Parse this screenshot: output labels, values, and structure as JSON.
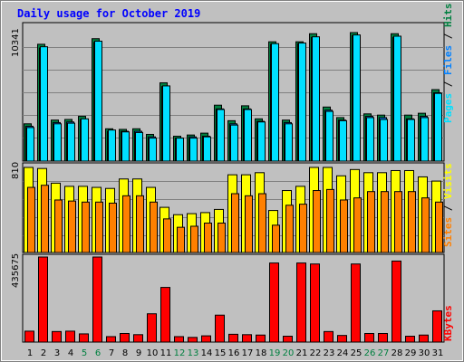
{
  "title": "Daily usage for October 2019",
  "colors": {
    "background": "#c0c0c0",
    "panel": "#c0c0c0",
    "title": "#0000ff",
    "hits": "#008040",
    "files": "#0080ff",
    "pages": "#00e0ff",
    "visits": "#ffff00",
    "sites": "#ff8000",
    "kbytes": "#ff0000",
    "weekend_label": "#008040"
  },
  "panel_labels": {
    "top": {
      "pages": "Pages",
      "files": "Files",
      "hits": "Hits",
      "sep": " / "
    },
    "middle": {
      "sites": "Sites",
      "visits": "Visits",
      "sep": " / "
    },
    "bottom": {
      "kbytes": "KBytes"
    }
  },
  "chart_data": [
    {
      "type": "bar",
      "panel": "top",
      "ylabel_max": "10341",
      "ylim": [
        0,
        10341
      ],
      "categories": [
        "1",
        "2",
        "3",
        "4",
        "5",
        "6",
        "7",
        "8",
        "9",
        "10",
        "11",
        "12",
        "13",
        "14",
        "15",
        "16",
        "17",
        "18",
        "19",
        "20",
        "21",
        "22",
        "23",
        "24",
        "25",
        "26",
        "27",
        "28",
        "29",
        "30",
        "31"
      ],
      "series": [
        {
          "name": "Hits",
          "values": [
            3000,
            9400,
            3300,
            3350,
            3600,
            9850,
            2600,
            2550,
            2600,
            2150,
            6300,
            2000,
            2100,
            2250,
            4500,
            3250,
            4450,
            3400,
            9600,
            3300,
            9600,
            10250,
            4350,
            3500,
            10341,
            3800,
            3700,
            10250,
            3700,
            3850,
            5750
          ]
        },
        {
          "name": "Files",
          "values": [
            2800,
            9100,
            3100,
            3150,
            3350,
            9550,
            2400,
            2400,
            2400,
            1950,
            6000,
            1850,
            1950,
            2000,
            4200,
            3000,
            4200,
            3200,
            9400,
            3100,
            9450,
            9950,
            4100,
            3300,
            10100,
            3600,
            3500,
            9950,
            3400,
            3600,
            5500
          ]
        },
        {
          "name": "Pages",
          "values": [
            2700,
            9200,
            3000,
            3050,
            3400,
            9650,
            2500,
            2350,
            2300,
            1850,
            6050,
            1850,
            1850,
            1950,
            4150,
            2900,
            4150,
            3150,
            9450,
            3000,
            9500,
            10000,
            4000,
            3250,
            10150,
            3500,
            3350,
            10050,
            3350,
            3500,
            5450
          ]
        }
      ]
    },
    {
      "type": "bar",
      "panel": "middle",
      "ylabel_max": "810",
      "ylim": [
        0,
        810
      ],
      "categories": [
        "1",
        "2",
        "3",
        "4",
        "5",
        "6",
        "7",
        "8",
        "9",
        "10",
        "11",
        "12",
        "13",
        "14",
        "15",
        "16",
        "17",
        "18",
        "19",
        "20",
        "21",
        "22",
        "23",
        "24",
        "25",
        "26",
        "27",
        "28",
        "29",
        "30",
        "31"
      ],
      "series": [
        {
          "name": "Visits",
          "values": [
            810,
            800,
            660,
            630,
            630,
            620,
            610,
            700,
            700,
            620,
            430,
            360,
            370,
            380,
            410,
            740,
            740,
            760,
            400,
            590,
            630,
            810,
            810,
            730,
            790,
            760,
            760,
            780,
            780,
            720,
            680
          ]
        },
        {
          "name": "Sites",
          "values": [
            620,
            640,
            500,
            490,
            480,
            480,
            470,
            540,
            540,
            480,
            320,
            240,
            250,
            280,
            280,
            560,
            540,
            560,
            260,
            450,
            460,
            590,
            600,
            500,
            520,
            580,
            580,
            580,
            580,
            520,
            480
          ]
        }
      ]
    },
    {
      "type": "bar",
      "panel": "bottom",
      "ylabel_max": "435675",
      "ylim": [
        0,
        435675
      ],
      "categories": [
        "1",
        "2",
        "3",
        "4",
        "5",
        "6",
        "7",
        "8",
        "9",
        "10",
        "11",
        "12",
        "13",
        "14",
        "15",
        "16",
        "17",
        "18",
        "19",
        "20",
        "21",
        "22",
        "23",
        "24",
        "25",
        "26",
        "27",
        "28",
        "29",
        "30",
        "31"
      ],
      "weekend_days": [
        "5",
        "6",
        "12",
        "13",
        "19",
        "20",
        "26",
        "27"
      ],
      "series": [
        {
          "name": "KBytes",
          "values": [
            56000,
            435675,
            54000,
            56000,
            42000,
            435675,
            28000,
            44000,
            38000,
            145000,
            280000,
            28000,
            24000,
            32000,
            138000,
            40000,
            38000,
            36000,
            405000,
            30000,
            405000,
            400000,
            54000,
            34000,
            400000,
            44000,
            44000,
            415000,
            30000,
            36000,
            160000
          ]
        }
      ]
    }
  ]
}
